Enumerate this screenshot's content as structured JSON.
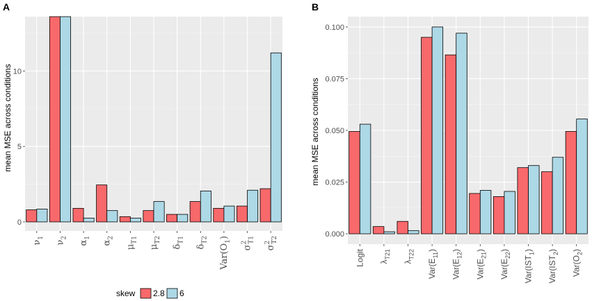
{
  "colors": {
    "series_2_8": "#F8696B",
    "series_6": "#ADD8E6",
    "panel_bg": "#EBEBEB",
    "grid": "#FFFFFF"
  },
  "legend": {
    "title": "skew",
    "items": [
      "2.8",
      "6"
    ]
  },
  "chart_data": [
    {
      "panel": "A",
      "type": "bar",
      "ylabel": "mean MSE across conditions",
      "ylim": [
        -0.6,
        13.6
      ],
      "yticks": [
        0,
        5,
        10
      ],
      "categories": [
        "ν1",
        "ν2",
        "α1",
        "α2",
        "μT1",
        "μT2",
        "δT1",
        "δT2",
        "Var(O1)",
        "σ2T1",
        "σ2T2"
      ],
      "tick_labels": [
        {
          "base": "ν",
          "sub": "1",
          "sup": ""
        },
        {
          "base": "ν",
          "sub": "2",
          "sup": ""
        },
        {
          "base": "α",
          "sub": "1",
          "sup": ""
        },
        {
          "base": "α",
          "sub": "2",
          "sup": ""
        },
        {
          "base": "μ",
          "sub": "T1",
          "sup": ""
        },
        {
          "base": "μ",
          "sub": "T2",
          "sup": ""
        },
        {
          "base": "δ",
          "sub": "T1",
          "sup": ""
        },
        {
          "base": "δ",
          "sub": "T2",
          "sup": ""
        },
        {
          "base": "Var(O",
          "sub": "1",
          "sup": "",
          "tail": ")"
        },
        {
          "base": "σ",
          "sub": "T1",
          "sup": "2"
        },
        {
          "base": "σ",
          "sub": "T2",
          "sup": "2"
        }
      ],
      "series": [
        {
          "name": "2.8",
          "values": [
            0.8,
            13.6,
            0.9,
            2.45,
            0.35,
            0.75,
            0.5,
            1.35,
            0.9,
            1.05,
            2.2
          ]
        },
        {
          "name": "6",
          "values": [
            0.85,
            13.6,
            0.25,
            0.75,
            0.25,
            1.35,
            0.5,
            2.05,
            1.05,
            2.1,
            11.2
          ]
        }
      ]
    },
    {
      "panel": "B",
      "type": "bar",
      "ylabel": "mean MSE across conditions",
      "ylim": [
        -0.005,
        0.105
      ],
      "yticks": [
        "0.000",
        "0.025",
        "0.050",
        "0.075",
        "0.100"
      ],
      "categories": [
        "Logit",
        "λT21",
        "λT22",
        "Var(E11)",
        "Var(E12)",
        "Var(E21)",
        "Var(E22)",
        "Var(IST1)",
        "Var(IST2)",
        "Var(O2)"
      ],
      "tick_labels": [
        {
          "base": "Logit",
          "sub": ""
        },
        {
          "base": "λ",
          "sub": "T21"
        },
        {
          "base": "λ",
          "sub": "T22"
        },
        {
          "base": "Var(E",
          "sub": "11",
          "tail": ")"
        },
        {
          "base": "Var(E",
          "sub": "12",
          "tail": ")"
        },
        {
          "base": "Var(E",
          "sub": "21",
          "tail": ")"
        },
        {
          "base": "Var(E",
          "sub": "22",
          "tail": ")"
        },
        {
          "base": "Var(IST",
          "sub": "1",
          "tail": ")"
        },
        {
          "base": "Var(IST",
          "sub": "2",
          "tail": ")"
        },
        {
          "base": "Var(O",
          "sub": "2",
          "tail": ")"
        }
      ],
      "series": [
        {
          "name": "2.8",
          "values": [
            0.0495,
            0.0035,
            0.006,
            0.095,
            0.0865,
            0.0195,
            0.018,
            0.032,
            0.03,
            0.0495
          ]
        },
        {
          "name": "6",
          "values": [
            0.053,
            0.001,
            0.0015,
            0.1,
            0.097,
            0.021,
            0.0205,
            0.033,
            0.037,
            0.0555
          ]
        }
      ]
    }
  ]
}
